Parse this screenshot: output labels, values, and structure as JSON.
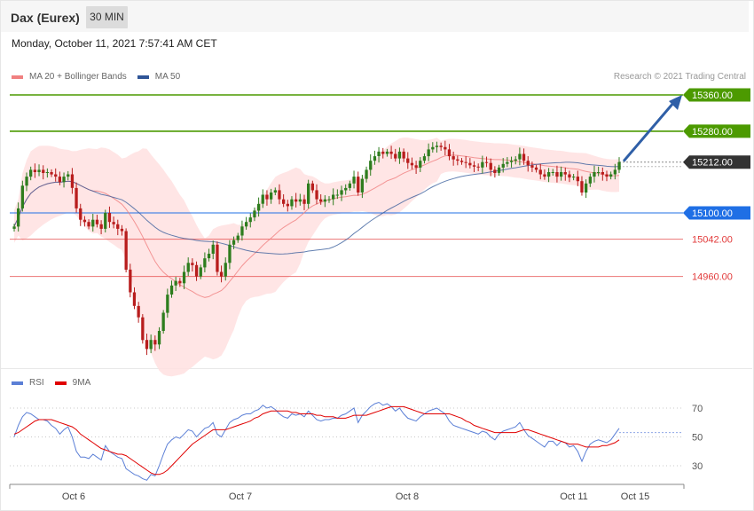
{
  "header": {
    "instrument": "Dax (Eurex)",
    "timeframe": "30 MIN",
    "datetime": "Monday, October 11, 2021 7:57:41 AM CET"
  },
  "legend": {
    "ma20_label": "MA 20 + Bollinger Bands",
    "ma20_color": "#f08080",
    "ma50_label": "MA 50",
    "ma50_color": "#2f5597",
    "copyright": "Research © 2021 Trading Central"
  },
  "rsi_legend": {
    "rsi_label": "RSI",
    "rsi_color": "#5b7fd6",
    "ma9_label": "9MA",
    "ma9_color": "#e00000"
  },
  "chart_data": [
    {
      "type": "candlestick",
      "ylim": [
        14800,
        15400
      ],
      "x_ticks": [
        "Oct 6",
        "Oct 7",
        "Oct 8",
        "Oct 11",
        "Oct 15"
      ],
      "levels": [
        {
          "label": "15360.00",
          "value": 15360,
          "color": "#4c9a00",
          "kind": "resistance"
        },
        {
          "label": "15280.00",
          "value": 15280,
          "color": "#4c9a00",
          "kind": "resistance"
        },
        {
          "label": "15212.00",
          "value": 15212,
          "color": "#333333",
          "kind": "last"
        },
        {
          "label": "15100.00",
          "value": 15100,
          "color": "#1f6fe5",
          "kind": "pivot"
        },
        {
          "label": "15042.00",
          "value": 15042,
          "color": "#e23a3a",
          "kind": "support"
        },
        {
          "label": "14960.00",
          "value": 14960,
          "color": "#e23a3a",
          "kind": "support"
        }
      ],
      "closes": [
        15070,
        15110,
        15160,
        15180,
        15195,
        15190,
        15195,
        15188,
        15190,
        15185,
        15180,
        15168,
        15180,
        15185,
        15155,
        15110,
        15085,
        15080,
        15070,
        15085,
        15075,
        15065,
        15100,
        15080,
        15075,
        15065,
        15060,
        14975,
        14925,
        14895,
        14870,
        14820,
        14800,
        14820,
        14810,
        14840,
        14880,
        14920,
        14940,
        14950,
        14945,
        14970,
        14990,
        14985,
        14960,
        14980,
        15000,
        15010,
        15030,
        14970,
        14960,
        14990,
        15030,
        15040,
        15050,
        15070,
        15080,
        15090,
        15105,
        15120,
        15140,
        15130,
        15145,
        15150,
        15130,
        15120,
        15115,
        15130,
        15125,
        15130,
        15120,
        15165,
        15150,
        15130,
        15125,
        15130,
        15130,
        15140,
        15140,
        15150,
        15155,
        15165,
        15180,
        15145,
        15175,
        15195,
        15215,
        15225,
        15235,
        15230,
        15235,
        15230,
        15220,
        15235,
        15220,
        15210,
        15205,
        15200,
        15215,
        15225,
        15240,
        15245,
        15248,
        15245,
        15240,
        15225,
        15218,
        15215,
        15212,
        15210,
        15205,
        15202,
        15200,
        15212,
        15210,
        15195,
        15188,
        15200,
        15208,
        15212,
        15215,
        15218,
        15230,
        15215,
        15205,
        15200,
        15195,
        15185,
        15180,
        15190,
        15190,
        15180,
        15190,
        15185,
        15178,
        15180,
        15170,
        15145,
        15165,
        15180,
        15190,
        15190,
        15185,
        15180,
        15185,
        15195,
        15212
      ]
    },
    {
      "type": "line",
      "title": "RSI",
      "ylim": [
        20,
        80
      ],
      "y_ticks": [
        70,
        50,
        30
      ],
      "series": [
        {
          "name": "RSI",
          "values": [
            50,
            58,
            64,
            67,
            66,
            64,
            62,
            62,
            61,
            58,
            56,
            52,
            55,
            57,
            50,
            40,
            36,
            36,
            35,
            38,
            36,
            34,
            44,
            40,
            38,
            36,
            35,
            28,
            26,
            24,
            23,
            21,
            20,
            24,
            23,
            30,
            38,
            45,
            48,
            50,
            49,
            52,
            55,
            54,
            50,
            53,
            56,
            57,
            60,
            52,
            50,
            55,
            60,
            62,
            63,
            65,
            66,
            66,
            68,
            69,
            72,
            70,
            71,
            69,
            66,
            64,
            63,
            66,
            65,
            66,
            64,
            68,
            65,
            62,
            61,
            62,
            62,
            63,
            63,
            65,
            66,
            68,
            70,
            60,
            65,
            68,
            71,
            73,
            74,
            72,
            73,
            71,
            68,
            70,
            66,
            63,
            62,
            61,
            64,
            66,
            68,
            69,
            70,
            68,
            66,
            61,
            58,
            57,
            56,
            55,
            54,
            53,
            52,
            54,
            53,
            50,
            48,
            52,
            54,
            55,
            56,
            57,
            60,
            55,
            51,
            49,
            47,
            45,
            43,
            47,
            47,
            44,
            47,
            46,
            43,
            44,
            40,
            33,
            40,
            45,
            47,
            48,
            47,
            46,
            48,
            52,
            56
          ]
        },
        {
          "name": "9MA",
          "values": [
            52,
            53,
            55,
            57,
            59,
            61,
            62,
            62,
            62,
            62,
            61,
            60,
            59,
            58,
            57,
            55,
            52,
            50,
            48,
            46,
            44,
            42,
            41,
            40,
            39,
            38,
            38,
            37,
            35,
            33,
            31,
            29,
            27,
            25,
            24,
            24,
            25,
            27,
            30,
            33,
            36,
            39,
            42,
            45,
            47,
            49,
            51,
            53,
            55,
            55,
            55,
            55,
            56,
            57,
            58,
            59,
            60,
            61,
            63,
            64,
            66,
            67,
            68,
            68,
            68,
            68,
            68,
            67,
            67,
            66,
            66,
            66,
            66,
            65,
            65,
            64,
            64,
            64,
            63,
            63,
            63,
            64,
            65,
            65,
            65,
            65,
            66,
            67,
            68,
            69,
            70,
            71,
            71,
            71,
            71,
            70,
            69,
            68,
            67,
            66,
            66,
            66,
            66,
            66,
            66,
            66,
            65,
            64,
            63,
            61,
            60,
            58,
            57,
            56,
            55,
            54,
            53,
            53,
            53,
            53,
            53,
            53,
            54,
            55,
            55,
            54,
            53,
            52,
            51,
            50,
            49,
            48,
            47,
            46,
            45,
            45,
            45,
            44,
            43,
            43,
            43,
            43,
            44,
            44,
            45,
            46,
            48
          ]
        }
      ]
    }
  ]
}
